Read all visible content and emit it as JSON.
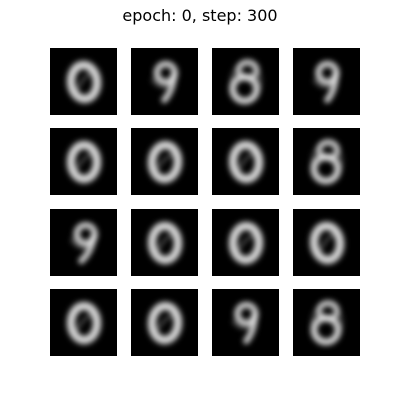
{
  "title": "epoch: 0, step: 300",
  "samples": [
    {
      "digit": "0"
    },
    {
      "digit": "9"
    },
    {
      "digit": "8"
    },
    {
      "digit": "9"
    },
    {
      "digit": "0"
    },
    {
      "digit": "0"
    },
    {
      "digit": "0"
    },
    {
      "digit": "8"
    },
    {
      "digit": "9"
    },
    {
      "digit": "0"
    },
    {
      "digit": "0"
    },
    {
      "digit": "0"
    },
    {
      "digit": "0"
    },
    {
      "digit": "0"
    },
    {
      "digit": "9"
    },
    {
      "digit": "8"
    }
  ],
  "colors": {
    "background": "#ffffff",
    "tile": "#000000",
    "stroke": "#e6e6e6"
  }
}
